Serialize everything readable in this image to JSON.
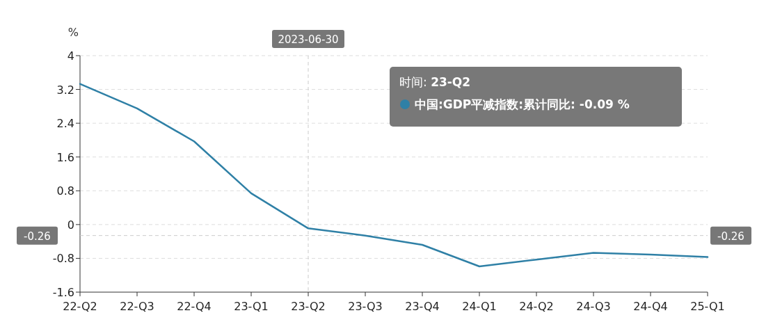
{
  "chart_data": {
    "type": "line",
    "ylabel": "%",
    "categories": [
      "22-Q2",
      "22-Q3",
      "22-Q4",
      "23-Q1",
      "23-Q2",
      "23-Q3",
      "23-Q4",
      "24-Q1",
      "24-Q2",
      "24-Q3",
      "24-Q4",
      "25-Q1"
    ],
    "series": [
      {
        "color": "#2f80a6",
        "values": [
          3.33,
          2.75,
          1.97,
          0.74,
          -0.09,
          -0.26,
          -0.48,
          -0.99,
          -0.83,
          -0.67,
          -0.71,
          -0.77
        ]
      }
    ],
    "ylim": [
      -1.6,
      4
    ],
    "yticks": [
      -1.6,
      -0.8,
      0,
      0.8,
      1.6,
      2.4,
      3.2,
      4
    ],
    "grid": "y",
    "marker": "none",
    "line_style": "solid",
    "ref_lines": [
      {
        "axis": "y",
        "value": -0.26,
        "label": "-0.26",
        "color": "#cccccc",
        "line_style": "dashed"
      },
      {
        "axis": "x",
        "value": "23-Q2",
        "label": "2023-06-30",
        "color": "#cccccc",
        "line_style": "dashed"
      }
    ],
    "annotations": [
      "时间: **23-Q2**",
      "**中国:GDP平减指数:累计同比: -0.09 %**"
    ]
  }
}
